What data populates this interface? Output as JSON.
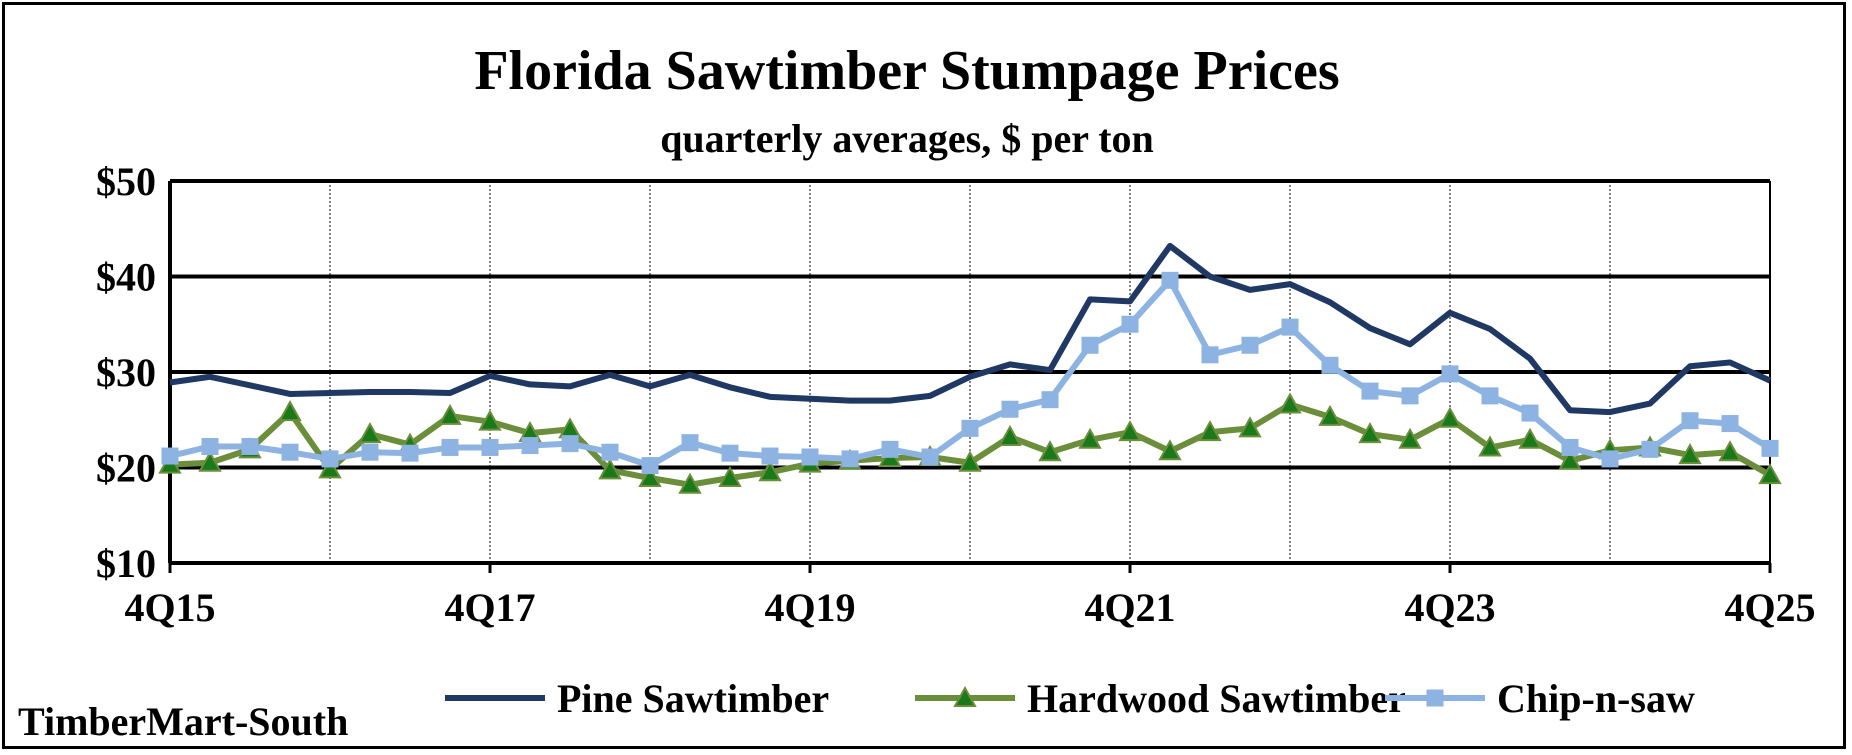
{
  "chart_data": {
    "type": "line",
    "title": "Florida Sawtimber Stumpage Prices",
    "subtitle": "quarterly averages, $ per ton",
    "source": "TimberMart-South",
    "xlabel": "",
    "ylabel": "",
    "ylim": [
      10,
      50
    ],
    "yticks": [
      10,
      20,
      30,
      40,
      50
    ],
    "ytick_labels": [
      "$10",
      "$20",
      "$30",
      "$40",
      "$50"
    ],
    "xtick_labels": [
      "4Q15",
      "4Q17",
      "4Q19",
      "4Q21",
      "4Q23",
      "4Q25"
    ],
    "x": [
      "4Q15",
      "1Q16",
      "2Q16",
      "3Q16",
      "4Q16",
      "1Q17",
      "2Q17",
      "3Q17",
      "4Q17",
      "1Q18",
      "2Q18",
      "3Q18",
      "4Q18",
      "1Q19",
      "2Q19",
      "3Q19",
      "4Q19",
      "1Q20",
      "2Q20",
      "3Q20",
      "4Q20",
      "1Q21",
      "2Q21",
      "3Q21",
      "4Q21",
      "1Q22",
      "2Q22",
      "3Q22",
      "4Q22",
      "1Q23",
      "2Q23",
      "3Q23",
      "4Q23",
      "1Q24",
      "2Q24",
      "3Q24",
      "4Q24",
      "1Q25",
      "2Q25",
      "3Q25",
      "4Q25"
    ],
    "grid": "horizontal major lines solid, vertical lines dotted every 4 quarters",
    "legend_position": "bottom",
    "series": [
      {
        "name": "Pine Sawtimber",
        "color": "#1f3864",
        "marker": "none",
        "values": [
          28.9,
          29.5,
          28.6,
          27.7,
          27.8,
          27.9,
          27.9,
          27.8,
          29.6,
          28.7,
          28.5,
          29.7,
          28.5,
          29.7,
          28.4,
          27.4,
          27.2,
          27.0,
          27.0,
          27.5,
          29.5,
          30.8,
          30.2,
          37.6,
          37.4,
          43.2,
          40.0,
          38.6,
          39.2,
          37.3,
          34.6,
          32.9,
          36.2,
          34.5,
          31.4,
          26.0,
          25.8,
          26.7,
          30.6,
          31.0,
          29.1
        ]
      },
      {
        "name": "Hardwood Sawtimber",
        "color": "#6b8e3a",
        "marker": "triangle",
        "values": [
          20.3,
          20.5,
          21.9,
          25.8,
          19.8,
          23.5,
          22.4,
          25.4,
          24.8,
          23.6,
          24.0,
          19.7,
          18.9,
          18.2,
          18.9,
          19.5,
          20.4,
          20.7,
          21.0,
          21.1,
          20.5,
          23.2,
          21.6,
          22.9,
          23.7,
          21.7,
          23.7,
          24.1,
          26.6,
          25.3,
          23.5,
          22.9,
          25.1,
          22.1,
          22.9,
          20.7,
          21.8,
          22.1,
          21.3,
          21.6,
          19.2
        ]
      },
      {
        "name": "Chip-n-saw",
        "color": "#8db3e2",
        "marker": "square",
        "values": [
          21.2,
          22.2,
          22.2,
          21.6,
          20.9,
          21.6,
          21.5,
          22.1,
          22.1,
          22.3,
          22.5,
          21.6,
          20.2,
          22.6,
          21.5,
          21.2,
          21.1,
          20.9,
          21.9,
          21.1,
          24.1,
          26.1,
          27.1,
          32.8,
          35.0,
          39.6,
          31.8,
          32.8,
          34.7,
          30.7,
          28.0,
          27.5,
          29.8,
          27.5,
          25.7,
          22.1,
          20.9,
          21.9,
          24.9,
          24.6,
          22.0
        ]
      }
    ]
  }
}
